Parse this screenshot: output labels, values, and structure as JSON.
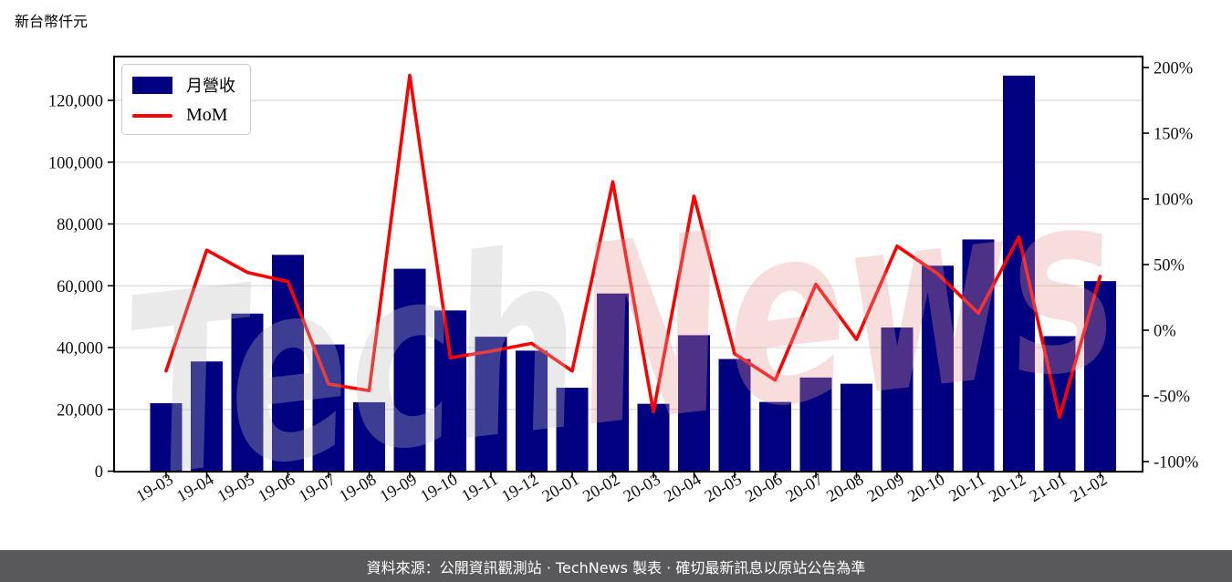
{
  "title": "新台幣仟元",
  "legend": {
    "bar_label": "月營收",
    "line_label": "MoM"
  },
  "watermark": {
    "part1": "Tech",
    "part2": "News"
  },
  "footer": {
    "text": "資料來源：公開資訊觀測站 · TechNews 製表 · 確切最新訊息以原站公告為準"
  },
  "colors": {
    "bar": "#000080",
    "line": "#ff0000",
    "grid": "#d9d9d9",
    "axis": "#000000",
    "watermark_gray": "#bfbfbf",
    "watermark_pink": "#eb9898",
    "footer_bg": "#59595b",
    "footer_text": "#ffffff"
  },
  "chart_data": {
    "type": "bar",
    "subtype": "bar+line combo, dual axis",
    "title": "新台幣仟元",
    "categories": [
      "19-03",
      "19-04",
      "19-05",
      "19-06",
      "19-07",
      "19-08",
      "19-09",
      "19-10",
      "19-11",
      "19-12",
      "20-01",
      "20-02",
      "20-03",
      "20-04",
      "20-05",
      "20-06",
      "20-07",
      "20-08",
      "20-09",
      "20-10",
      "20-11",
      "20-12",
      "21-01",
      "21-02"
    ],
    "series": [
      {
        "name": "月營收",
        "type": "bar",
        "axis": "left",
        "unit": "新台幣仟元",
        "color": "#000080",
        "values": [
          22000,
          35500,
          51000,
          70000,
          41000,
          22300,
          65500,
          52000,
          43500,
          39000,
          27000,
          57500,
          21800,
          44000,
          36300,
          22400,
          30300,
          28300,
          46500,
          66500,
          75000,
          128000,
          43700,
          61500
        ]
      },
      {
        "name": "MoM",
        "type": "line",
        "axis": "right",
        "unit": "%",
        "color": "#ff0000",
        "values": [
          -31,
          61,
          44,
          37,
          -41,
          -46,
          194,
          -21,
          -16,
          -10,
          -31,
          113,
          -62,
          102,
          -18,
          -38,
          35,
          -7,
          64,
          43,
          13,
          71,
          -66,
          41
        ]
      }
    ],
    "left_axis": {
      "tick_values": [
        0,
        20000,
        40000,
        60000,
        80000,
        100000,
        120000
      ],
      "tick_labels": [
        "0",
        "20,000",
        "40,000",
        "60,000",
        "80,000",
        "100,000",
        "120,000"
      ],
      "range": [
        0,
        130000
      ]
    },
    "right_axis": {
      "tick_values": [
        -100,
        -50,
        0,
        50,
        100,
        150,
        200
      ],
      "tick_labels": [
        "-100%",
        "-50%",
        "0%",
        "50%",
        "100%",
        "150%",
        "200%"
      ],
      "range": [
        -110,
        208
      ]
    },
    "grid": "horizontal, at left-axis ticks",
    "legend_position": "upper-left inside plot",
    "x_tick_rotation_deg": 30
  }
}
